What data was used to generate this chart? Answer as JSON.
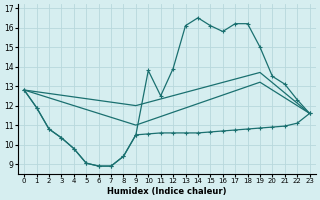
{
  "xlabel": "Humidex (Indice chaleur)",
  "background_color": "#d6eef0",
  "grid_color": "#b8d8dc",
  "line_color": "#1a7070",
  "x_ticks": [
    0,
    1,
    2,
    3,
    4,
    5,
    6,
    7,
    8,
    9,
    10,
    11,
    12,
    13,
    14,
    15,
    16,
    17,
    18,
    19,
    20,
    21,
    22,
    23
  ],
  "y_ticks": [
    9,
    10,
    11,
    12,
    13,
    14,
    15,
    16,
    17
  ],
  "xlim": [
    -0.5,
    23.5
  ],
  "ylim": [
    8.5,
    17.2
  ],
  "line_bottom_u": {
    "x": [
      0,
      1,
      2,
      3,
      4,
      5,
      6,
      7,
      8,
      9,
      10,
      11,
      12,
      13,
      14,
      15,
      16,
      17,
      18,
      19,
      20,
      21,
      22,
      23
    ],
    "y": [
      12.8,
      11.9,
      10.8,
      10.35,
      9.8,
      9.05,
      8.9,
      8.9,
      9.4,
      10.5,
      10.55,
      10.6,
      10.6,
      10.6,
      10.6,
      10.65,
      10.7,
      10.75,
      10.8,
      10.85,
      10.9,
      10.95,
      11.1,
      11.6
    ]
  },
  "line_top_peak": {
    "x": [
      0,
      1,
      2,
      3,
      4,
      5,
      6,
      7,
      8,
      9,
      10,
      11,
      12,
      13,
      14,
      15,
      16,
      17,
      18,
      19,
      20,
      21,
      22,
      23
    ],
    "y": [
      12.8,
      11.9,
      10.8,
      10.35,
      9.8,
      9.05,
      8.9,
      8.9,
      9.4,
      10.5,
      13.8,
      12.5,
      13.9,
      16.1,
      16.5,
      16.1,
      15.8,
      16.2,
      16.2,
      15.0,
      13.5,
      13.1,
      12.3,
      11.6
    ]
  },
  "line_mid_upper": {
    "x": [
      0,
      9,
      19,
      23
    ],
    "y": [
      12.8,
      12.0,
      13.7,
      11.6
    ]
  },
  "line_mid_lower": {
    "x": [
      0,
      9,
      19,
      23
    ],
    "y": [
      12.8,
      11.0,
      13.2,
      11.6
    ]
  }
}
